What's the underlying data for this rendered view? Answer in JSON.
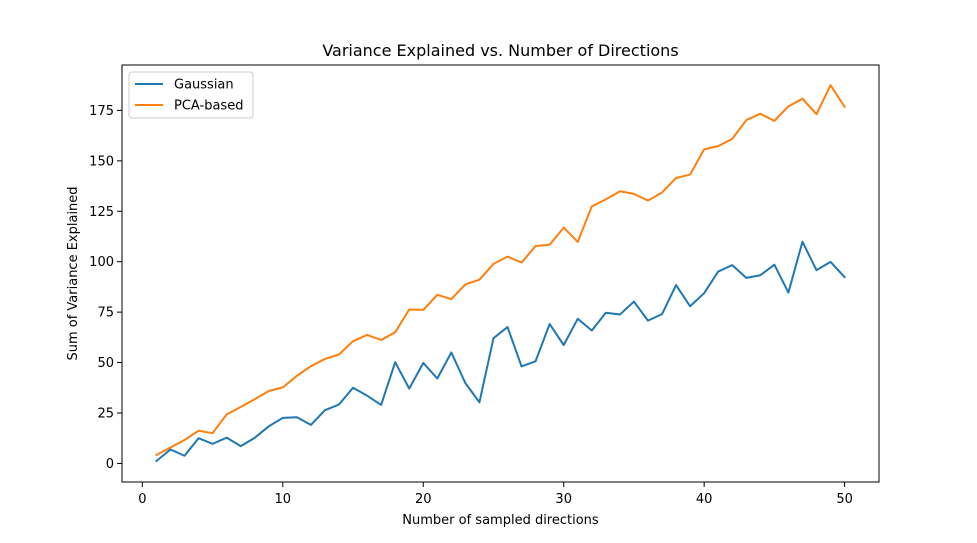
{
  "chart_data": {
    "type": "line",
    "title": "Variance Explained vs. Number of Directions",
    "xlabel": "Number of sampled directions",
    "ylabel": "Sum of Variance Explained",
    "xlim": [
      -1.45,
      52.45
    ],
    "ylim": [
      -9.2,
      197.5
    ],
    "xticks": [
      0,
      10,
      20,
      30,
      40,
      50
    ],
    "yticks": [
      0,
      25,
      50,
      75,
      100,
      125,
      150,
      175
    ],
    "grid": false,
    "legend_position": "upper-left",
    "x": [
      1,
      2,
      3,
      4,
      5,
      6,
      7,
      8,
      9,
      10,
      11,
      12,
      13,
      14,
      15,
      16,
      17,
      18,
      19,
      20,
      21,
      22,
      23,
      24,
      25,
      26,
      27,
      28,
      29,
      30,
      31,
      32,
      33,
      34,
      35,
      36,
      37,
      38,
      39,
      40,
      41,
      42,
      43,
      44,
      45,
      46,
      47,
      48,
      49,
      50
    ],
    "series": [
      {
        "name": "Gaussian",
        "color": "#1f77b4",
        "values": [
          1.2,
          6.9,
          3.8,
          12.5,
          9.7,
          12.8,
          8.6,
          12.7,
          18.4,
          22.6,
          22.9,
          19.1,
          26.4,
          29.2,
          37.5,
          33.6,
          29.0,
          50.2,
          37.1,
          49.8,
          42.1,
          55.0,
          39.8,
          30.3,
          62.1,
          67.6,
          48.1,
          50.7,
          69.1,
          58.7,
          71.7,
          65.9,
          74.7,
          73.8,
          80.2,
          70.8,
          74.0,
          88.4,
          77.9,
          84.4,
          95.1,
          98.3,
          92.0,
          93.3,
          98.5,
          84.7,
          109.9,
          95.8,
          99.9,
          92.4
        ]
      },
      {
        "name": "PCA-based",
        "color": "#ff7f0e",
        "values": [
          4.2,
          7.9,
          11.6,
          16.2,
          15.0,
          24.3,
          28.0,
          31.8,
          35.9,
          37.7,
          43.4,
          48.2,
          51.8,
          54.0,
          60.6,
          63.7,
          61.2,
          65.0,
          76.3,
          76.1,
          83.6,
          81.5,
          88.7,
          91.1,
          98.9,
          102.5,
          99.6,
          107.8,
          108.4,
          116.9,
          109.8,
          127.4,
          130.9,
          134.9,
          133.6,
          130.3,
          134.3,
          141.5,
          143.2,
          155.7,
          157.3,
          160.9,
          170.2,
          173.3,
          169.8,
          177.0,
          180.8,
          173.1,
          187.5,
          176.8
        ]
      }
    ]
  }
}
